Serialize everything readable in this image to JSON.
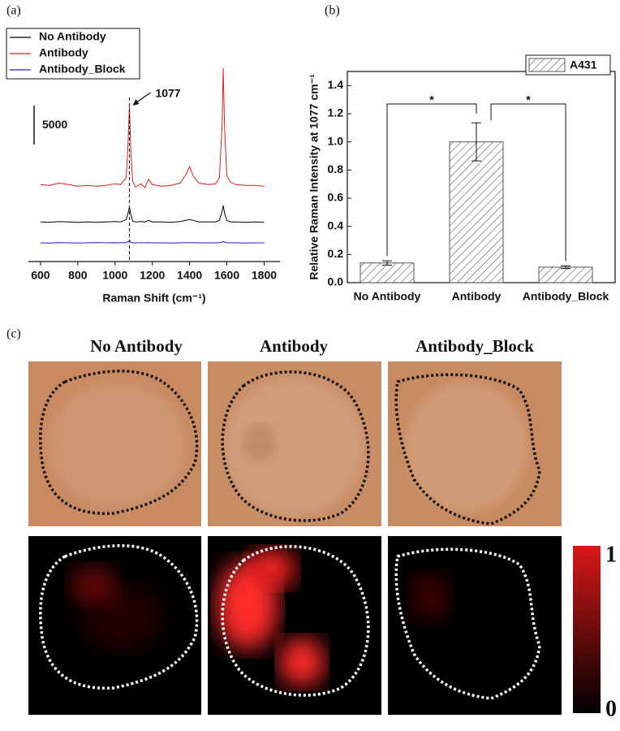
{
  "chart_data": [
    {
      "type": "line",
      "panel_label": "(a)",
      "xlabel": "Raman Shift (cm⁻¹)",
      "x": [
        600,
        650,
        700,
        750,
        800,
        850,
        900,
        950,
        1000,
        1030,
        1060,
        1070,
        1077,
        1085,
        1095,
        1110,
        1140,
        1160,
        1180,
        1200,
        1250,
        1300,
        1350,
        1380,
        1400,
        1420,
        1450,
        1500,
        1540,
        1560,
        1575,
        1580,
        1588,
        1600,
        1620,
        1650,
        1700,
        1750,
        1800
      ],
      "series": [
        {
          "name": "No Antibody",
          "color": "#000000",
          "values": [
            5100,
            5050,
            5150,
            5100,
            5050,
            5100,
            5050,
            5100,
            5150,
            5100,
            5400,
            6300,
            7000,
            6000,
            5200,
            5100,
            5150,
            5100,
            5300,
            5100,
            5100,
            5050,
            5150,
            5300,
            5400,
            5300,
            5100,
            5100,
            5100,
            5300,
            6500,
            7200,
            6200,
            5300,
            5100,
            5100,
            5050,
            5100,
            5050
          ]
        },
        {
          "name": "Antibody",
          "color": "#d42020",
          "values": [
            9900,
            9800,
            10100,
            9900,
            9700,
            9800,
            9700,
            9800,
            10000,
            9900,
            10800,
            15500,
            20000,
            14000,
            10300,
            9600,
            10000,
            9500,
            10600,
            9900,
            9700,
            9800,
            10100,
            11200,
            12200,
            11000,
            10100,
            9900,
            10000,
            10800,
            18000,
            24900,
            17000,
            11000,
            10200,
            9900,
            9800,
            9800,
            9700
          ]
        },
        {
          "name": "Antibody_Block",
          "color": "#2020d0",
          "values": [
            2400,
            2380,
            2420,
            2400,
            2380,
            2400,
            2450,
            2400,
            2420,
            2400,
            2450,
            2550,
            2700,
            2500,
            2400,
            2400,
            2420,
            2400,
            2430,
            2400,
            2400,
            2380,
            2400,
            2420,
            2430,
            2420,
            2400,
            2400,
            2400,
            2420,
            2500,
            2600,
            2500,
            2420,
            2400,
            2400,
            2380,
            2400,
            2400
          ]
        }
      ],
      "xlim": [
        535,
        1885
      ],
      "xticks": [
        600,
        800,
        1000,
        1200,
        1400,
        1600,
        1800
      ],
      "ylim": [
        0,
        30000
      ],
      "scale_bar": 5000,
      "annotation_x": 1077
    },
    {
      "type": "bar",
      "panel_label": "(b)",
      "ylabel": "Relative Raman Intensity at 1077 cm⁻¹",
      "categories": [
        "No Antibody",
        "Antibody",
        "Antibody_Block"
      ],
      "series": [
        {
          "name": "A431",
          "color": "#555555",
          "values": [
            0.14,
            1.0,
            0.11
          ],
          "errors": [
            0.015,
            0.135,
            0.01
          ]
        }
      ],
      "ylim": [
        0,
        1.5
      ],
      "yticks": [
        {
          "value": 0,
          "label": "0.0"
        },
        0.2,
        0.4,
        0.6,
        0.8,
        {
          "value": 1,
          "label": "1.0"
        },
        1.2,
        1.4
      ],
      "annotations": [
        "*",
        "*"
      ]
    }
  ],
  "images": {
    "panel_label": "(c)",
    "titles": [
      "No Antibody",
      "Antibody",
      "Antibody_Block"
    ],
    "colorbar_ticks": [
      0,
      1
    ]
  }
}
